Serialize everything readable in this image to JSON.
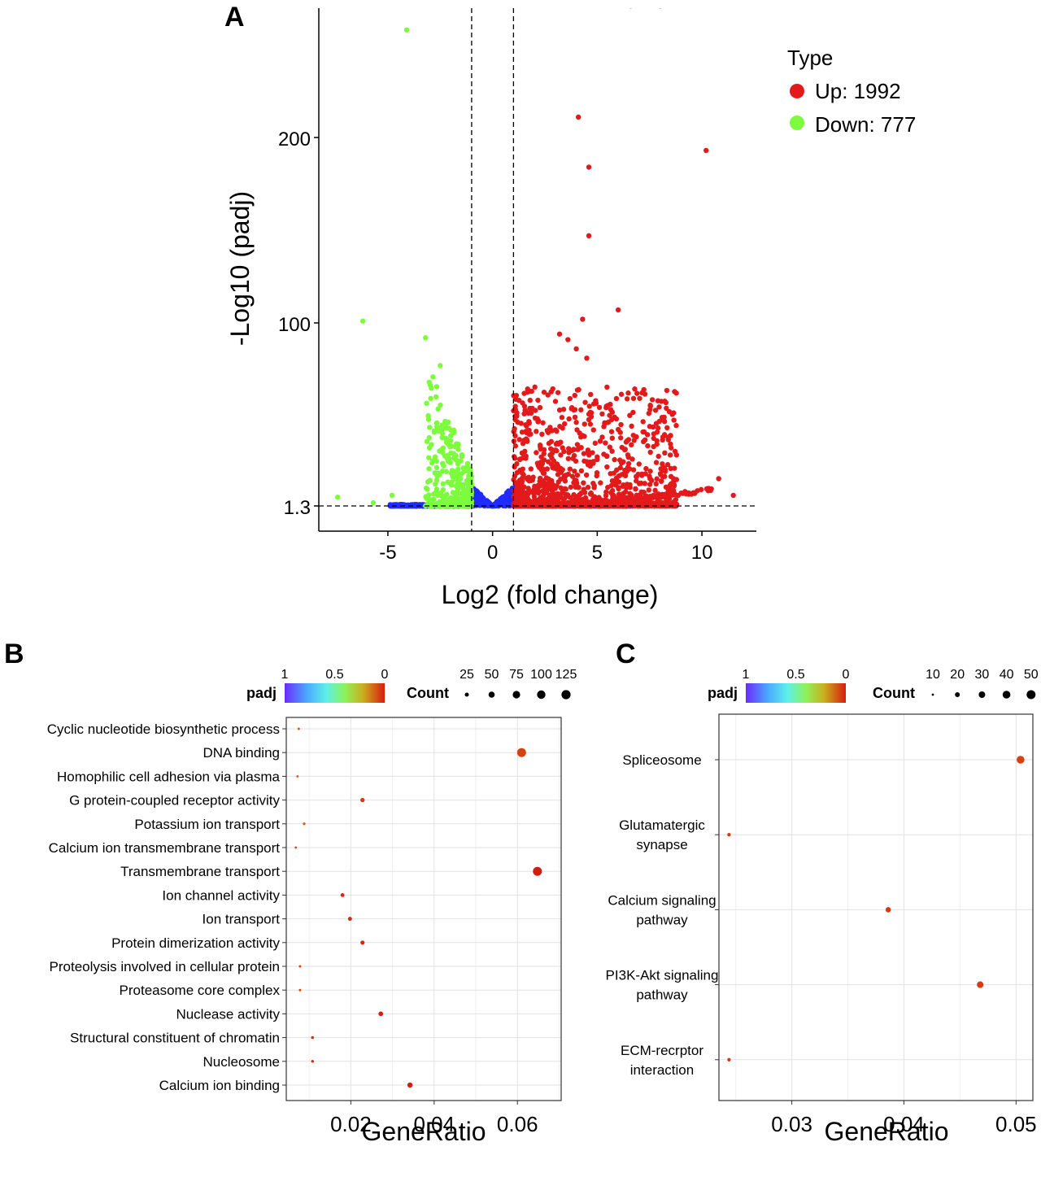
{
  "chart_data": [
    {
      "panel": "A",
      "type": "scatter",
      "title": "",
      "xlabel": "Log2 (fold change)",
      "ylabel": "-Log10 (padj)",
      "xlim": [
        -8.3,
        12.6
      ],
      "y_ticks": [
        {
          "label": "1.3",
          "value": 1.3
        },
        {
          "label": "100",
          "value": 100
        },
        {
          "label": "200",
          "value": 200
        }
      ],
      "x_ticks": [
        {
          "label": "-5",
          "value": -5
        },
        {
          "label": "0",
          "value": 0
        },
        {
          "label": "5",
          "value": 5
        },
        {
          "label": "10",
          "value": 10
        }
      ],
      "thresholds": {
        "x": [
          -1,
          1
        ],
        "y": 1.3
      },
      "legend": {
        "title": "Type",
        "entries": [
          {
            "label": "Up: 1992",
            "color": "#e31a1c"
          },
          {
            "label": "Down: 777",
            "color": "#7cfc3c"
          }
        ]
      },
      "series": [
        {
          "name": "Up",
          "color": "#e31a1c",
          "points": [
            [
              6.6,
              271
            ],
            [
              8.0,
              271
            ],
            [
              4.1,
              211
            ],
            [
              10.2,
              193
            ],
            [
              4.6,
              184
            ],
            [
              4.6,
              147
            ],
            [
              6.0,
              107
            ],
            [
              4.3,
              102
            ],
            [
              3.2,
              94
            ],
            [
              3.6,
              91
            ],
            [
              4.0,
              86
            ],
            [
              4.5,
              81
            ],
            [
              6.9,
              62
            ],
            [
              7.9,
              58
            ],
            [
              8.3,
              54
            ],
            [
              10.8,
              16
            ],
            [
              11.5,
              7
            ]
          ]
        },
        {
          "name": "Down",
          "color": "#7cfc3c",
          "points": [
            [
              -4.1,
              258
            ],
            [
              -6.2,
              101
            ],
            [
              -3.2,
              92
            ],
            [
              -2.5,
              77
            ],
            [
              -7.4,
              6
            ],
            [
              -4.8,
              7
            ],
            [
              -5.7,
              3
            ]
          ]
        },
        {
          "name": "Not significant",
          "color": "#1f2bff",
          "points": []
        }
      ]
    },
    {
      "panel": "B",
      "type": "scatter",
      "xlabel": "GeneRatio",
      "ylabel": "",
      "xlim": [
        0.0045,
        0.0705
      ],
      "x_ticks": [
        {
          "label": "0.02",
          "value": 0.02
        },
        {
          "label": "0.04",
          "value": 0.04
        },
        {
          "label": "0.06",
          "value": 0.06
        }
      ],
      "categories": [
        "Cyclic nucleotide biosynthetic process",
        "DNA binding",
        "Homophilic cell adhesion via plasma",
        "G protein-coupled receptor activity",
        "Potassium ion transport",
        "Calcium ion transmembrane transport",
        "Transmembrane transport",
        "Ion channel activity",
        "Ion transport",
        "Protein dimerization activity",
        "Proteolysis involved in cellular protein",
        "Proteasome core complex",
        "Nuclease activity",
        "Structural constituent of chromatin",
        "Nucleosome",
        "Calcium ion binding"
      ],
      "gene_ratio": [
        0.0075,
        0.061,
        0.0072,
        0.0228,
        0.0088,
        0.0068,
        0.0648,
        0.018,
        0.0198,
        0.0228,
        0.0078,
        0.0078,
        0.0272,
        0.0108,
        0.0108,
        0.0342
      ],
      "count": [
        10,
        125,
        9,
        45,
        15,
        8,
        125,
        36,
        38,
        42,
        12,
        11,
        50,
        17,
        17,
        60
      ],
      "color": [
        "#de5a10",
        "#d4430f",
        "#de5a10",
        "#d63a10",
        "#de5a10",
        "#e03b10",
        "#cf1f10",
        "#d22a10",
        "#d22a10",
        "#d22a10",
        "#de4a10",
        "#de4a10",
        "#cf1f10",
        "#d22a10",
        "#d22a10",
        "#cf1f10"
      ],
      "legend": {
        "padj_title": "padj",
        "padj_ticks": [
          "1",
          "0.5",
          "0"
        ],
        "count_title": "Count",
        "count_ticks": [
          "25",
          "50",
          "75",
          "100",
          "125"
        ]
      }
    },
    {
      "panel": "C",
      "type": "scatter",
      "xlabel": "GeneRatio",
      "ylabel": "",
      "xlim": [
        0.0235,
        0.0515
      ],
      "x_ticks": [
        {
          "label": "0.03",
          "value": 0.03
        },
        {
          "label": "0.04",
          "value": 0.04
        },
        {
          "label": "0.05",
          "value": 0.05
        }
      ],
      "categories": [
        [
          "Spliceosome"
        ],
        [
          "Glutamatergic",
          "synapse"
        ],
        [
          "Calcium signaling",
          "pathway"
        ],
        [
          "PI3K-Akt signaling",
          "pathway"
        ],
        [
          "ECM-recrptor",
          "interaction"
        ]
      ],
      "gene_ratio": [
        0.0504,
        0.0244,
        0.0386,
        0.0468,
        0.0244
      ],
      "count": [
        48,
        20,
        32,
        40,
        20
      ],
      "color": [
        "#d4430f",
        "#d63a10",
        "#d63a10",
        "#d63a10",
        "#d63a10"
      ],
      "legend": {
        "padj_title": "padj",
        "padj_ticks": [
          "1",
          "0.5",
          "0"
        ],
        "count_title": "Count",
        "count_ticks": [
          "10",
          "20",
          "30",
          "40",
          "50"
        ]
      }
    }
  ]
}
